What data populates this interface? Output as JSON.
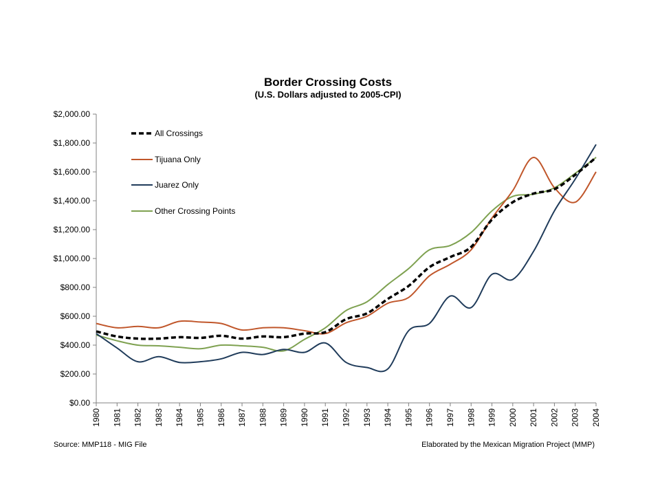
{
  "chart_data": {
    "type": "line",
    "title": "Border Crossing Costs",
    "subtitle": "(U.S. Dollars adjusted to 2005-CPI)",
    "xlabel": "",
    "ylabel": "",
    "x": [
      "1980",
      "1981",
      "1982",
      "1983",
      "1984",
      "1985",
      "1986",
      "1987",
      "1988",
      "1989",
      "1990",
      "1991",
      "1992",
      "1993",
      "1994",
      "1995",
      "1996",
      "1997",
      "1998",
      "1999",
      "2000",
      "2001",
      "2002",
      "2003",
      "2004"
    ],
    "ylim": [
      0,
      2000
    ],
    "y_ticks": [
      0,
      200,
      400,
      600,
      800,
      1000,
      1200,
      1400,
      1600,
      1800,
      2000
    ],
    "y_tick_labels": [
      "$0.00",
      "$200.00",
      "$400.00",
      "$600.00",
      "$800.00",
      "$1,000.00",
      "$1,200.00",
      "$1,400.00",
      "$1,600.00",
      "$1,800.00",
      "$2,000.00"
    ],
    "grid": false,
    "legend_position": "top-left",
    "series": [
      {
        "name": "All Crossings",
        "color": "#000000",
        "style": "dashed",
        "values": [
          495,
          460,
          445,
          445,
          455,
          450,
          465,
          445,
          460,
          455,
          480,
          490,
          580,
          620,
          720,
          810,
          940,
          1010,
          1080,
          1270,
          1390,
          1450,
          1480,
          1580,
          1700
        ]
      },
      {
        "name": "Tijuana Only",
        "color": "#c0562a",
        "style": "solid",
        "values": [
          550,
          520,
          530,
          520,
          565,
          560,
          550,
          505,
          520,
          520,
          500,
          480,
          555,
          600,
          690,
          730,
          880,
          960,
          1060,
          1280,
          1470,
          1700,
          1490,
          1390,
          1600
        ]
      },
      {
        "name": "Juarez Only",
        "color": "#1f3b5a",
        "style": "solid",
        "values": [
          480,
          380,
          285,
          320,
          280,
          285,
          305,
          350,
          335,
          370,
          350,
          415,
          280,
          245,
          235,
          500,
          550,
          740,
          660,
          890,
          855,
          1050,
          1330,
          1550,
          1790
        ]
      },
      {
        "name": "Other Crossing Points",
        "color": "#7ea150",
        "style": "solid",
        "values": [
          470,
          430,
          400,
          395,
          385,
          375,
          400,
          395,
          385,
          360,
          440,
          520,
          640,
          700,
          820,
          930,
          1060,
          1090,
          1180,
          1330,
          1430,
          1445,
          1490,
          1590,
          1700
        ]
      }
    ]
  },
  "footer": {
    "source": "Source: MMP118 - MIG File",
    "credit": "Elaborated by the Mexican Migration Project (MMP)"
  }
}
